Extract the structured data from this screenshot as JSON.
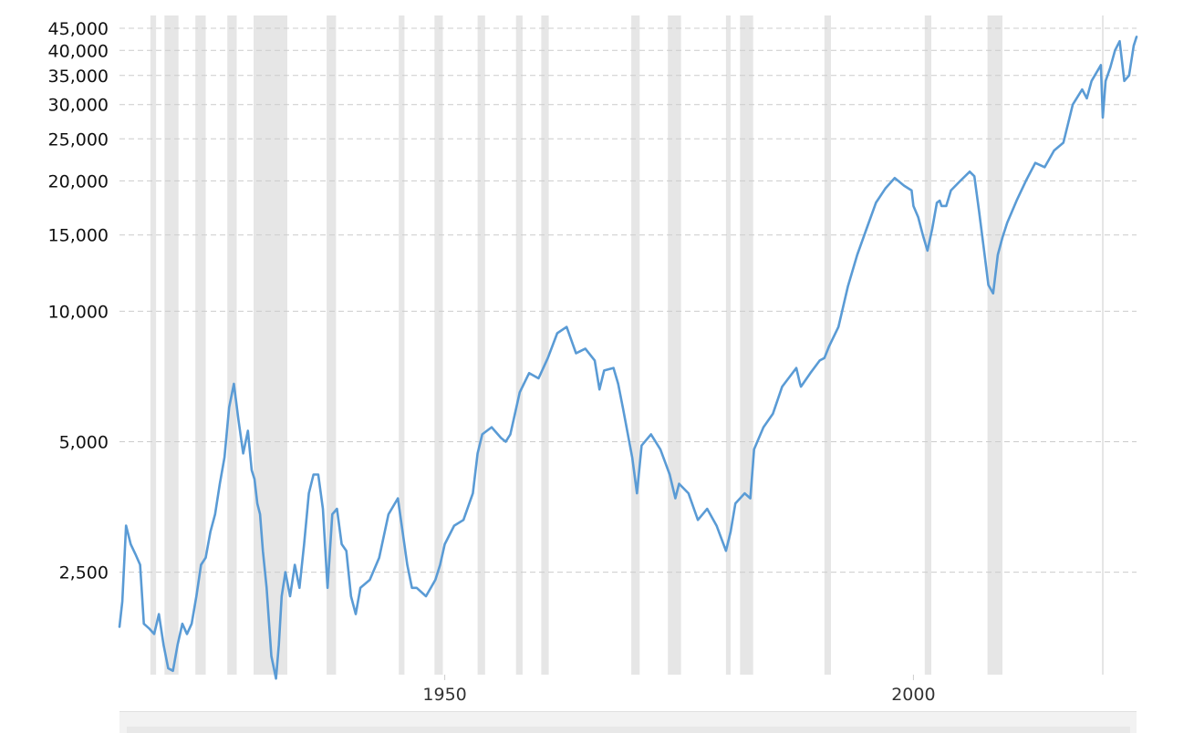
{
  "chart_data": {
    "type": "line",
    "title": "",
    "xlabel": "",
    "ylabel": "",
    "y_scale": "log",
    "ylim": [
      1450,
      47000
    ],
    "xlim": [
      1915.3,
      2023.8
    ],
    "grid": {
      "horizontal": true,
      "vertical": false
    },
    "line_color": "#5a9bd5",
    "recession_color": "#e6e6e6",
    "x_ticks": [
      {
        "value": 1950,
        "label": "1950"
      },
      {
        "value": 2000,
        "label": "2000"
      }
    ],
    "y_ticks": [
      {
        "value": 2500,
        "label": "2,500"
      },
      {
        "value": 5000,
        "label": "5,000"
      },
      {
        "value": 10000,
        "label": "10,000"
      },
      {
        "value": 15000,
        "label": "15,000"
      },
      {
        "value": 20000,
        "label": "20,000"
      },
      {
        "value": 25000,
        "label": "25,000"
      },
      {
        "value": 30000,
        "label": "30,000"
      },
      {
        "value": 35000,
        "label": "35,000"
      },
      {
        "value": 40000,
        "label": "40,000"
      },
      {
        "value": 45000,
        "label": "45,000"
      }
    ],
    "recessions": [
      [
        1918.6,
        1919.2
      ],
      [
        1920.1,
        1921.6
      ],
      [
        1923.4,
        1924.5
      ],
      [
        1926.8,
        1927.8
      ],
      [
        1929.6,
        1933.2
      ],
      [
        1937.4,
        1938.4
      ],
      [
        1945.1,
        1945.7
      ],
      [
        1948.9,
        1949.8
      ],
      [
        1953.5,
        1954.3
      ],
      [
        1957.6,
        1958.3
      ],
      [
        1960.3,
        1961.1
      ],
      [
        1969.9,
        1970.8
      ],
      [
        1973.8,
        1975.2
      ],
      [
        1980.0,
        1980.5
      ],
      [
        1981.5,
        1982.9
      ],
      [
        1990.5,
        1991.2
      ],
      [
        2001.2,
        2001.9
      ],
      [
        2007.9,
        2009.5
      ],
      [
        2020.1,
        2020.3
      ]
    ],
    "series": [
      {
        "x": [
          1915.3,
          1915.6,
          1916.0,
          1916.5,
          1917.0,
          1917.5,
          1917.9,
          1918.5,
          1919.0,
          1919.5,
          1920.0,
          1920.5,
          1921.0,
          1921.5,
          1922.0,
          1922.5,
          1923.0,
          1923.5,
          1924.0,
          1924.5,
          1925.0,
          1925.5,
          1926.0,
          1926.5,
          1927.0,
          1927.5,
          1928.0,
          1928.5,
          1929.0,
          1929.4,
          1929.7,
          1930.0,
          1930.3,
          1930.6,
          1931.0,
          1931.5,
          1932.0,
          1932.3,
          1932.6,
          1933.0,
          1933.5,
          1934.0,
          1934.5,
          1935.0,
          1935.5,
          1936.0,
          1936.5,
          1937.0,
          1937.5,
          1938.0,
          1938.5,
          1939.0,
          1939.5,
          1940.0,
          1940.5,
          1941.0,
          1942.0,
          1943.0,
          1944.0,
          1945.0,
          1946.0,
          1946.5,
          1947.0,
          1948.0,
          1949.0,
          1949.5,
          1950.0,
          1951.0,
          1952.0,
          1953.0,
          1953.5,
          1954.0,
          1955.0,
          1956.0,
          1956.5,
          1957.0,
          1958.0,
          1959.0,
          1960.0,
          1961.0,
          1962.0,
          1963.0,
          1964.0,
          1965.0,
          1966.0,
          1966.5,
          1967.0,
          1968.0,
          1968.5,
          1969.0,
          1970.0,
          1970.5,
          1971.0,
          1972.0,
          1973.0,
          1974.0,
          1974.6,
          1975.0,
          1976.0,
          1977.0,
          1978.0,
          1979.0,
          1980.0,
          1980.5,
          1981.0,
          1982.0,
          1982.6,
          1983.0,
          1984.0,
          1985.0,
          1986.0,
          1987.5,
          1987.9,
          1988.0,
          1989.0,
          1990.0,
          1990.5,
          1991.0,
          1992.0,
          1993.0,
          1994.0,
          1995.0,
          1996.0,
          1997.0,
          1998.0,
          1999.0,
          1999.8,
          2000.0,
          2000.5,
          2001.0,
          2001.5,
          2002.0,
          2002.5,
          2002.8,
          2003.0,
          2003.5,
          2004.0,
          2005.0,
          2006.0,
          2006.5,
          2007.0,
          2007.5,
          2008.0,
          2008.5,
          2009.0,
          2009.5,
          2010.0,
          2011.0,
          2012.0,
          2013.0,
          2014.0,
          2015.0,
          2016.0,
          2017.0,
          2018.0,
          2018.5,
          2019.0,
          2020.0,
          2020.2,
          2020.5,
          2021.0,
          2021.5,
          2022.0,
          2022.5,
          2023.0,
          2023.5,
          2023.8
        ],
        "values": [
          1870,
          2140,
          3200,
          2900,
          2750,
          2600,
          1900,
          1850,
          1800,
          2000,
          1700,
          1500,
          1480,
          1700,
          1900,
          1800,
          1900,
          2200,
          2600,
          2700,
          3100,
          3400,
          4000,
          4600,
          6000,
          6800,
          5600,
          4700,
          5300,
          4300,
          4100,
          3600,
          3400,
          2800,
          2300,
          1600,
          1420,
          1700,
          2200,
          2500,
          2200,
          2600,
          2300,
          2900,
          3800,
          4200,
          4200,
          3500,
          2300,
          3400,
          3500,
          2900,
          2800,
          2200,
          2000,
          2300,
          2400,
          2700,
          3400,
          3700,
          2600,
          2300,
          2300,
          2200,
          2400,
          2600,
          2900,
          3200,
          3300,
          3800,
          4700,
          5200,
          5400,
          5100,
          5000,
          5200,
          6500,
          7200,
          7000,
          7800,
          8900,
          9200,
          8000,
          8200,
          7700,
          6600,
          7300,
          7400,
          6800,
          6000,
          4600,
          3800,
          4900,
          5200,
          4800,
          4200,
          3700,
          4000,
          3800,
          3300,
          3500,
          3200,
          2800,
          3100,
          3600,
          3800,
          3700,
          4800,
          5400,
          5800,
          6700,
          7400,
          6800,
          6700,
          7200,
          7700,
          7800,
          8300,
          9200,
          11400,
          13500,
          15500,
          17800,
          19200,
          20300,
          19500,
          19000,
          17500,
          16500,
          15000,
          13800,
          15500,
          17800,
          18000,
          17500,
          17500,
          19000,
          20000,
          21000,
          20500,
          17000,
          14000,
          11500,
          11000,
          13500,
          14800,
          16000,
          18000,
          20000,
          22000,
          21500,
          23500,
          24500,
          30000,
          32500,
          31000,
          34000,
          37000,
          28000,
          34000,
          36500,
          40000,
          42000,
          34000,
          35000,
          41000,
          43000
        ]
      }
    ]
  }
}
